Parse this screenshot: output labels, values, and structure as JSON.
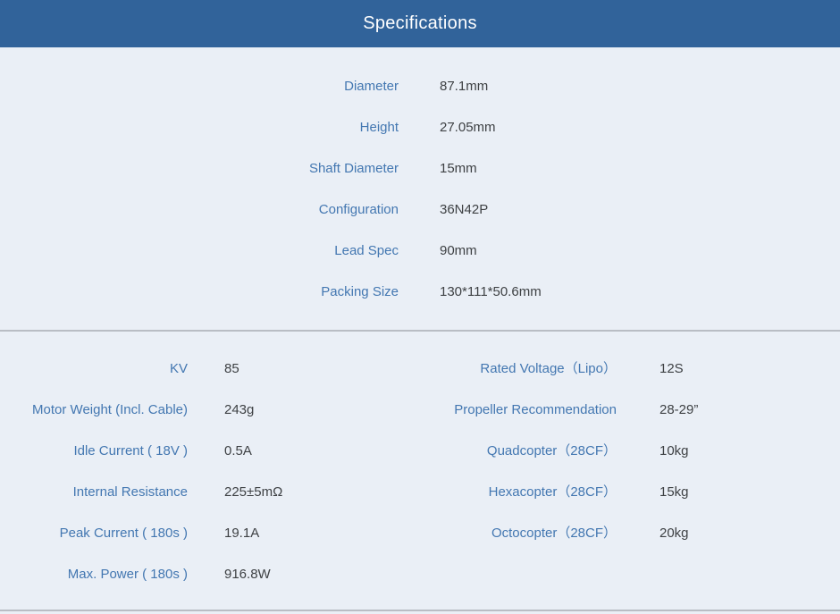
{
  "header": {
    "title": "Specifications"
  },
  "colors": {
    "header_bg": "#31639A",
    "header_text": "#FFFFFF",
    "page_bg": "#EAEFF6",
    "label": "#4377B1",
    "value": "#3E4144",
    "divider": "#B9BDC4"
  },
  "spec_general": [
    {
      "label": "Diameter",
      "value": "87.1mm"
    },
    {
      "label": "Height",
      "value": "27.05mm"
    },
    {
      "label": "Shaft Diameter",
      "value": "15mm"
    },
    {
      "label": "Configuration",
      "value": "36N42P"
    },
    {
      "label": "Lead Spec",
      "value": "90mm"
    },
    {
      "label": "Packing Size",
      "value": "130*111*50.6mm"
    }
  ],
  "spec_detail_left": [
    {
      "label": "KV",
      "value": "85"
    },
    {
      "label": "Motor Weight (Incl. Cable)",
      "value": "243g"
    },
    {
      "label": "Idle Current ( 18V )",
      "value": "0.5A"
    },
    {
      "label": "Internal Resistance",
      "value": "225±5mΩ"
    },
    {
      "label": "Peak Current ( 180s )",
      "value": "19.1A"
    },
    {
      "label": "Max. Power ( 180s )",
      "value": "916.8W"
    }
  ],
  "spec_detail_right": [
    {
      "label": "Rated Voltage（Lipo）",
      "value": "12S"
    },
    {
      "label": "Propeller Recommendation",
      "value": "28-29”"
    },
    {
      "label": "Quadcopter（28CF）",
      "value": "10kg"
    },
    {
      "label": "Hexacopter（28CF）",
      "value": "15kg"
    },
    {
      "label": "Octocopter（28CF）",
      "value": "20kg"
    }
  ]
}
